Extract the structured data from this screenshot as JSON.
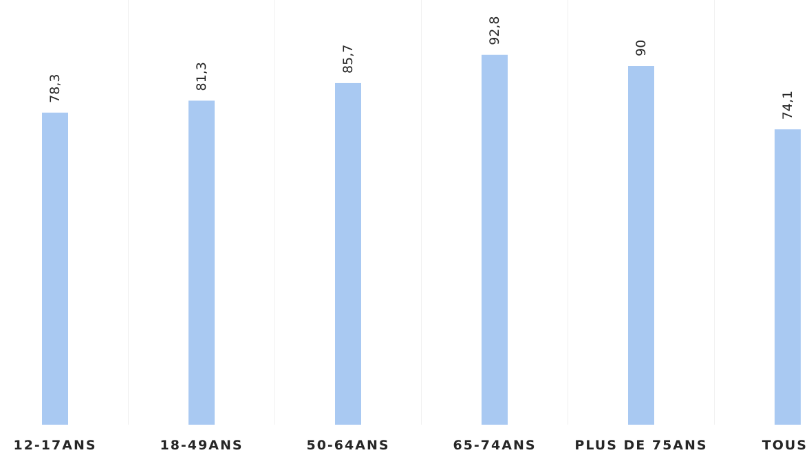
{
  "chart_data": {
    "type": "bar",
    "categories": [
      "12-17ANS",
      "18-49ANS",
      "50-64ANS",
      "65-74ANS",
      "PLUS DE 75ANS",
      "TOUS"
    ],
    "values": [
      78.3,
      81.3,
      85.7,
      92.8,
      90,
      74.1
    ],
    "value_labels": [
      "78,3",
      "81,3",
      "85,7",
      "92,8",
      "90",
      "74,1"
    ],
    "title": "",
    "xlabel": "",
    "ylabel": "",
    "ylim": [
      0,
      100
    ],
    "grid": true,
    "legend": "none",
    "bar_color": "#a9c9f2",
    "grid_color": "#f0f0f0",
    "label_color": "#262626"
  }
}
